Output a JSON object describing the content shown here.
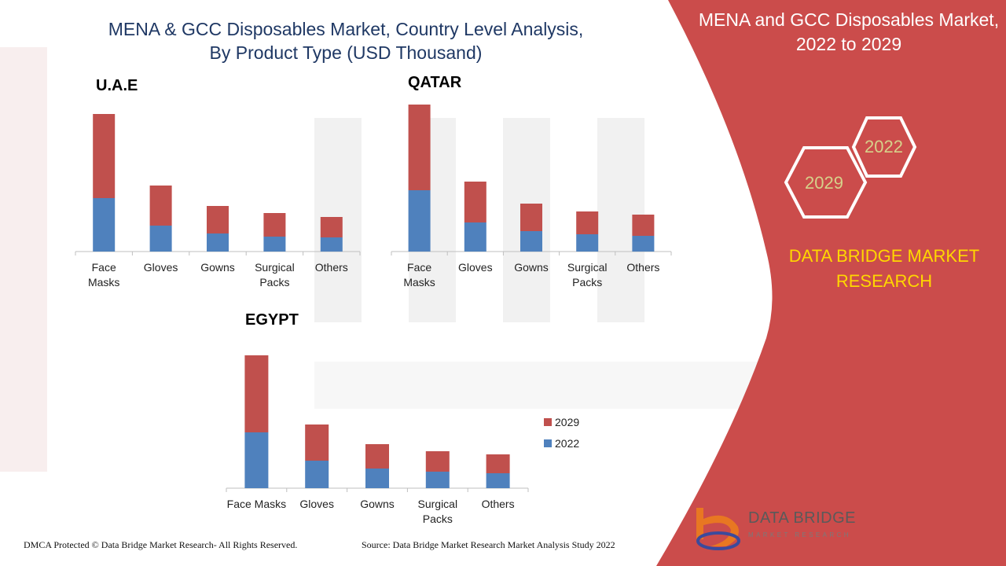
{
  "title_line1": "MENA & GCC Disposables Market, Country Level Analysis,",
  "title_line2": "By Product Type (USD Thousand)",
  "panel": {
    "title_line1": "MENA and GCC Disposables Market,",
    "title_line2": "2022 to 2029",
    "hex_back": "2022",
    "hex_front": "2029",
    "brand_line1": "DATA BRIDGE MARKET",
    "brand_line2": "RESEARCH"
  },
  "legend": [
    {
      "label": "2029",
      "color": "#c0504d"
    },
    {
      "label": "2022",
      "color": "#4f81bd"
    }
  ],
  "chart_data": [
    {
      "type": "bar",
      "stacked": true,
      "title": "U.A.E",
      "categories": [
        "Face Masks",
        "Gloves",
        "Gowns",
        "Surgical Packs",
        "Others"
      ],
      "series": [
        {
          "name": "2022",
          "values": [
            68,
            33,
            23,
            19,
            18
          ]
        },
        {
          "name": "2029",
          "values": [
            107,
            51,
            35,
            30,
            26
          ]
        }
      ]
    },
    {
      "type": "bar",
      "stacked": true,
      "title": "QATAR",
      "categories": [
        "Face Masks",
        "Gloves",
        "Gowns",
        "Surgical Packs",
        "Others"
      ],
      "series": [
        {
          "name": "2022",
          "values": [
            78,
            37,
            26,
            22,
            20
          ]
        },
        {
          "name": "2029",
          "values": [
            109,
            52,
            35,
            29,
            27
          ]
        }
      ]
    },
    {
      "type": "bar",
      "stacked": true,
      "title": "EGYPT",
      "categories": [
        "Face Masks",
        "Gloves",
        "Gowns",
        "Surgical Packs",
        "Others"
      ],
      "series": [
        {
          "name": "2022",
          "values": [
            71,
            35,
            25,
            21,
            19
          ]
        },
        {
          "name": "2029",
          "values": [
            98,
            46,
            31,
            26,
            24
          ]
        }
      ]
    }
  ],
  "colors": {
    "s2022": "#4f81bd",
    "s2029": "#c0504d",
    "panel": "#cb4c4b",
    "brand": "#ffd700"
  },
  "footer_left": "DMCA Protected © Data Bridge Market Research- All Rights Reserved.",
  "footer_right": "Source: Data Bridge Market Research Market Analysis Study 2022",
  "logo_text": "DATA BRIDGE",
  "logo_sub": "MARKET RESEARCH"
}
